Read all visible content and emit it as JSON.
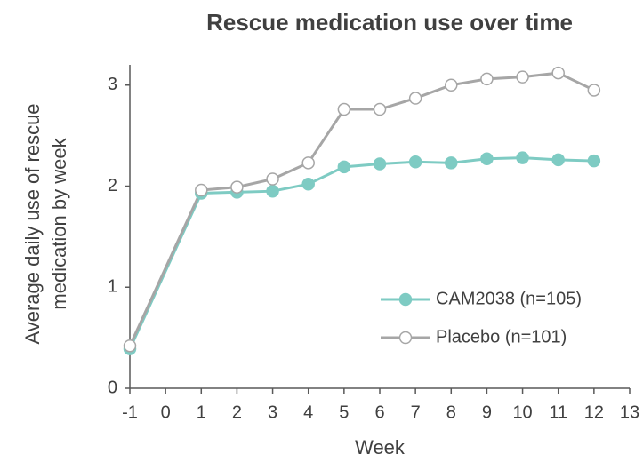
{
  "chart_data": {
    "type": "line",
    "title": "Rescue medication use over time",
    "x_label": "Week",
    "y_label": [
      "Average daily use of rescue",
      "medication by week"
    ],
    "x": [
      -1,
      1,
      2,
      3,
      4,
      5,
      6,
      7,
      8,
      9,
      10,
      11,
      12
    ],
    "series": [
      {
        "name": "CAM2038 (n=105)",
        "color": "#7ecbc3",
        "marker": "filled",
        "values": [
          0.39,
          1.93,
          1.94,
          1.95,
          2.02,
          2.19,
          2.22,
          2.24,
          2.23,
          2.27,
          2.28,
          2.26,
          2.25
        ]
      },
      {
        "name": "Placebo (n=101)",
        "color": "#a6a6a6",
        "marker": "open",
        "values": [
          0.42,
          1.96,
          1.99,
          2.07,
          2.23,
          2.76,
          2.76,
          2.87,
          3.0,
          3.06,
          3.08,
          3.12,
          2.95
        ]
      }
    ],
    "xlim": [
      -1,
      13
    ],
    "xticks": [
      -1,
      0,
      1,
      2,
      3,
      4,
      5,
      6,
      7,
      8,
      9,
      10,
      11,
      12,
      13
    ],
    "ylim": [
      0,
      3.2
    ],
    "yticks": [
      0,
      1,
      2,
      3
    ],
    "grid": false,
    "legend": "lower right"
  }
}
